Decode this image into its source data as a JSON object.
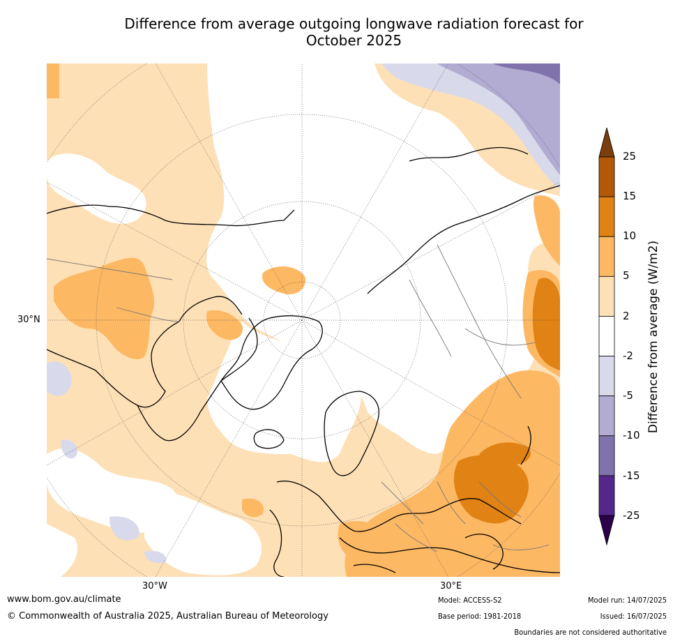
{
  "title_line1": "Difference from average outgoing longwave radiation forecast for",
  "title_line2": "October 2025",
  "map": {
    "lat_label": "30°N",
    "lon_labels": [
      "30°W",
      "30°E"
    ]
  },
  "colorbar": {
    "label": "Difference from average (W/m2)",
    "ticks": [
      "25",
      "15",
      "10",
      "5",
      "2",
      "-2",
      "-5",
      "-10",
      "-15",
      "-25"
    ],
    "colors": [
      "#7a3d0b",
      "#b35806",
      "#e08214",
      "#fdb863",
      "#fee0b6",
      "#ffffff",
      "#d8daeb",
      "#b2abd2",
      "#8073ac",
      "#542788",
      "#2d004b"
    ]
  },
  "footer": {
    "website": "www.bom.gov.au/climate",
    "copyright": "© Commonwealth of Australia 2025, Australian Bureau of Meteorology",
    "model": "Model: ACCESS-S2",
    "base_period": "Base period: 1981-2018",
    "model_run": "Model run: 14/07/2025",
    "issued": "Issued: 16/07/2025",
    "disclaimer": "Boundaries are not considered authoritative"
  }
}
